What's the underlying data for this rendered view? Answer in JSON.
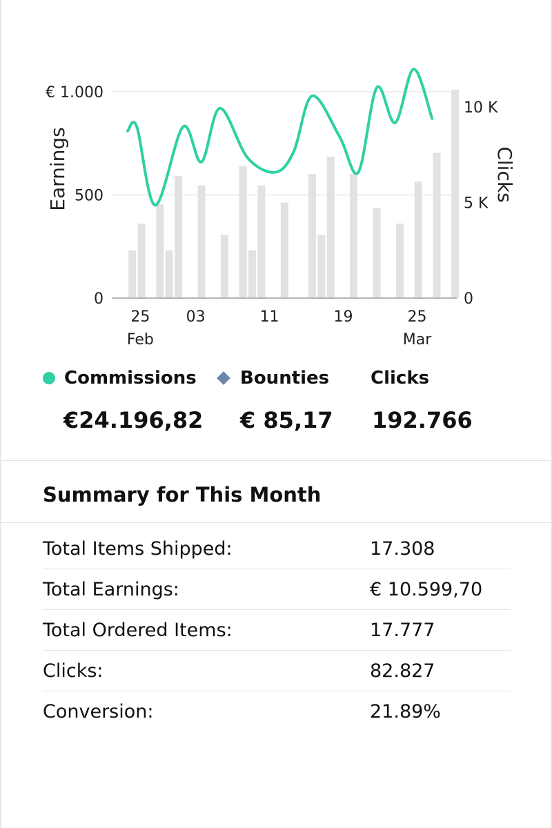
{
  "colors": {
    "commissions": "#2fd0a4",
    "bounties": "#6a87a8",
    "bars": "#e2e2e2",
    "grid": "#e8e8e8"
  },
  "chart_data": {
    "type": "bar+line",
    "left_axis": {
      "title": "Earnings",
      "range": [
        0,
        1000
      ],
      "ticks": [
        0,
        500,
        1000
      ],
      "tick_labels": [
        "0",
        "500",
        "€ 1.000"
      ]
    },
    "right_axis": {
      "title": "Clicks",
      "range": [
        0,
        10800
      ],
      "ticks": [
        0,
        5000,
        10000
      ],
      "tick_labels": [
        "0",
        "5 K",
        "10 K"
      ]
    },
    "x_axis": {
      "range": [
        0,
        35
      ],
      "ticks": [
        1,
        7,
        15,
        23,
        31
      ],
      "tick_labels": [
        "25",
        "03",
        "11",
        "19",
        "25"
      ],
      "month_labels": [
        {
          "day": 1,
          "label": "Feb"
        },
        {
          "day": 31,
          "label": "Mar"
        }
      ]
    },
    "bars": {
      "name": "Clicks",
      "x": [
        0.5,
        1.5,
        3.5,
        4.5,
        5.5,
        8.0,
        10.5,
        12.5,
        13.5,
        14.5,
        17.0,
        20.0,
        21.0,
        22.0,
        24.5,
        27.0,
        29.5,
        31.5,
        33.5,
        35.5,
        37.0
      ],
      "values": [
        2500,
        3900,
        4900,
        2500,
        6400,
        5900,
        3300,
        6900,
        2500,
        5900,
        5000,
        6500,
        3300,
        7400,
        6500,
        4700,
        3900,
        6100,
        7600,
        10900,
        0
      ]
    },
    "series": [
      {
        "name": "Commissions",
        "values": [
          [
            0,
            810
          ],
          [
            1,
            830
          ],
          [
            3,
            450
          ],
          [
            6,
            830
          ],
          [
            8,
            660
          ],
          [
            10,
            920
          ],
          [
            13,
            680
          ],
          [
            16,
            610
          ],
          [
            18,
            710
          ],
          [
            20,
            980
          ],
          [
            23,
            780
          ],
          [
            25,
            610
          ],
          [
            27,
            1020
          ],
          [
            29,
            850
          ],
          [
            31,
            1110
          ],
          [
            33,
            870
          ]
        ]
      }
    ]
  },
  "legend": {
    "commissions_label": "Commissions",
    "bounties_label": "Bounties",
    "clicks_label": "Clicks"
  },
  "totals": {
    "commissions": "€24.196,82",
    "bounties": "€ 85,17",
    "clicks": "192.766"
  },
  "summary": {
    "title": "Summary for This Month",
    "rows": [
      {
        "label": "Total Items Shipped:",
        "value": "17.308"
      },
      {
        "label": "Total Earnings:",
        "value": "€ 10.599,70"
      },
      {
        "label": "Total Ordered Items:",
        "value": "17.777"
      },
      {
        "label": "Clicks:",
        "value": "82.827"
      },
      {
        "label": "Conversion:",
        "value": "21.89%"
      }
    ]
  }
}
